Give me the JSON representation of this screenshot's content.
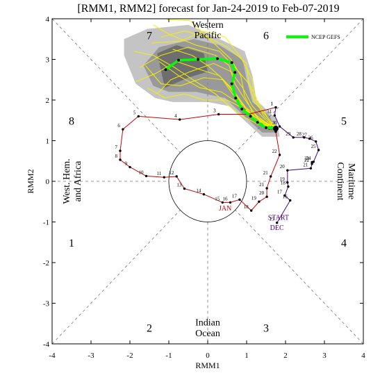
{
  "chart_data": {
    "type": "line",
    "title": "[RMM1, RMM2] forecast for Jan-24-2019 to Feb-07-2019",
    "xlabel": "RMM1",
    "ylabel": "RMM2",
    "xlim": [
      -4,
      4
    ],
    "ylim": [
      -4,
      4
    ],
    "x_ticks": [
      "-4",
      "-3",
      "-2",
      "-1",
      "0",
      "1",
      "2",
      "3",
      "4"
    ],
    "y_ticks": [
      "-4",
      "-3",
      "-2",
      "-1",
      "0",
      "1",
      "2",
      "3",
      "4"
    ],
    "phase_numbers": [
      {
        "label": "1",
        "x": -3.5,
        "y": -1.5
      },
      {
        "label": "2",
        "x": -1.5,
        "y": -3.6
      },
      {
        "label": "3",
        "x": 1.5,
        "y": -3.6
      },
      {
        "label": "4",
        "x": 3.5,
        "y": -1.5
      },
      {
        "label": "5",
        "x": 3.5,
        "y": 1.5
      },
      {
        "label": "6",
        "x": 1.5,
        "y": 3.6
      },
      {
        "label": "7",
        "x": -1.5,
        "y": 3.6
      },
      {
        "label": "8",
        "x": -3.5,
        "y": 1.5
      }
    ],
    "region_labels": {
      "western_pacific": [
        "Western",
        "Pacific"
      ],
      "indian_ocean": [
        "Indian",
        "Ocean"
      ],
      "maritime": [
        "Maritime",
        "Continent"
      ],
      "west_hem": [
        "West. Hem.",
        "and Africa"
      ]
    },
    "annotations": {
      "start": "START",
      "dec": "DEC",
      "jan": "JAN"
    },
    "legend": {
      "label": "NCEP GEFS",
      "color": "#00ff00",
      "position": "top-right"
    },
    "series": [
      {
        "color": "#4b0082",
        "points": [
          {
            "x": 1.78,
            "y": -1.02,
            "label": "15"
          },
          {
            "x": 2.12,
            "y": -0.47,
            "label": "16"
          },
          {
            "x": 1.98,
            "y": -0.35,
            "label": "17"
          },
          {
            "x": 2.07,
            "y": -0.13,
            "label": "18"
          },
          {
            "x": 2.05,
            "y": -0.03,
            "label": "19"
          },
          {
            "x": 2.05,
            "y": 0.27,
            "label": "20"
          },
          {
            "x": 2.65,
            "y": 0.32,
            "label": "21"
          },
          {
            "x": 2.68,
            "y": 0.43,
            "label": "22"
          },
          {
            "x": 2.68,
            "y": 0.47,
            "label": "23"
          },
          {
            "x": 2.72,
            "y": 0.48,
            "label": "24"
          },
          {
            "x": 2.85,
            "y": 0.77,
            "label": "25"
          },
          {
            "x": 2.78,
            "y": 0.98,
            "label": "26"
          },
          {
            "x": 2.62,
            "y": 1.05,
            "label": "27"
          },
          {
            "x": 2.48,
            "y": 1.08,
            "label": "28"
          },
          {
            "x": 2.2,
            "y": 1.08,
            "label": "29"
          },
          {
            "x": 1.85,
            "y": 1.35,
            "label": "30"
          },
          {
            "x": 1.72,
            "y": 1.62,
            "label": "31"
          },
          {
            "x": 1.75,
            "y": 1.82,
            "label": "1"
          }
        ]
      },
      {
        "color": "#cc0000",
        "points": [
          {
            "x": 1.75,
            "y": 1.82,
            "label": "1"
          },
          {
            "x": 1.05,
            "y": 1.65,
            "label": "2"
          },
          {
            "x": 0.28,
            "y": 1.65,
            "label": "3"
          },
          {
            "x": -0.72,
            "y": 1.52,
            "label": "4"
          },
          {
            "x": -1.78,
            "y": 1.6,
            "label": "5"
          },
          {
            "x": -2.18,
            "y": 1.28,
            "label": "6"
          },
          {
            "x": -2.25,
            "y": 0.75,
            "label": "7"
          },
          {
            "x": -2.25,
            "y": 0.53,
            "label": "8"
          },
          {
            "x": -2.0,
            "y": 0.35,
            "label": "9"
          },
          {
            "x": -1.58,
            "y": 0.13,
            "label": "10"
          },
          {
            "x": -1.12,
            "y": 0.1,
            "label": "11"
          },
          {
            "x": -0.8,
            "y": 0.12,
            "label": "12"
          },
          {
            "x": -0.6,
            "y": -0.18,
            "label": "13"
          },
          {
            "x": -0.1,
            "y": -0.32,
            "label": "14"
          },
          {
            "x": 0.38,
            "y": -0.52,
            "label": "15"
          },
          {
            "x": 0.58,
            "y": -0.52,
            "label": "16"
          },
          {
            "x": 0.82,
            "y": -0.45,
            "label": "17"
          },
          {
            "x": 1.12,
            "y": -0.72,
            "label": "18"
          },
          {
            "x": 1.32,
            "y": -0.5,
            "label": "19"
          },
          {
            "x": 1.52,
            "y": -0.38,
            "label": "20"
          },
          {
            "x": 1.52,
            "y": -0.17,
            "label": "21"
          },
          {
            "x": 1.62,
            "y": 0.12,
            "label": "21"
          },
          {
            "x": 1.85,
            "y": 0.65,
            "label": "22"
          },
          {
            "x": 1.75,
            "y": 1.22,
            "label": "23"
          }
        ]
      },
      {
        "name": "NCEP GEFS",
        "color": "#00ff00",
        "points": [
          {
            "x": 1.75,
            "y": 1.32
          },
          {
            "x": 1.5,
            "y": 1.32
          },
          {
            "x": 1.28,
            "y": 1.45
          },
          {
            "x": 1.1,
            "y": 1.6
          },
          {
            "x": 0.88,
            "y": 1.78
          },
          {
            "x": 0.72,
            "y": 2.05
          },
          {
            "x": 0.62,
            "y": 2.4
          },
          {
            "x": 0.7,
            "y": 2.68
          },
          {
            "x": 0.62,
            "y": 2.92
          },
          {
            "x": 0.25,
            "y": 3.02
          },
          {
            "x": -0.25,
            "y": 3.0
          },
          {
            "x": -0.75,
            "y": 2.98
          },
          {
            "x": -1.08,
            "y": 2.75
          }
        ]
      }
    ],
    "ensemble_members": [
      [
        [
          1.75,
          1.32
        ],
        [
          1.45,
          1.4
        ],
        [
          1.15,
          1.7
        ],
        [
          0.95,
          2.1
        ],
        [
          0.85,
          2.6
        ],
        [
          0.6,
          3.0
        ],
        [
          0.1,
          3.45
        ],
        [
          -0.45,
          3.95
        ],
        [
          -1.05,
          3.98
        ]
      ],
      [
        [
          1.75,
          1.32
        ],
        [
          1.6,
          1.5
        ],
        [
          1.2,
          1.95
        ],
        [
          1.05,
          2.45
        ],
        [
          1.0,
          2.9
        ],
        [
          0.5,
          3.3
        ],
        [
          0.0,
          3.55
        ],
        [
          -0.6,
          3.7
        ],
        [
          -1.2,
          3.55
        ]
      ],
      [
        [
          1.75,
          1.32
        ],
        [
          1.3,
          1.55
        ],
        [
          1.0,
          1.95
        ],
        [
          0.7,
          2.4
        ],
        [
          0.55,
          2.85
        ],
        [
          0.2,
          3.1
        ],
        [
          -0.5,
          3.3
        ],
        [
          -1.2,
          3.1
        ],
        [
          -1.75,
          2.8
        ]
      ],
      [
        [
          1.75,
          1.32
        ],
        [
          1.4,
          1.45
        ],
        [
          1.0,
          1.75
        ],
        [
          0.7,
          2.15
        ],
        [
          0.4,
          2.5
        ],
        [
          -0.1,
          2.55
        ],
        [
          -0.7,
          2.35
        ],
        [
          -1.2,
          2.4
        ],
        [
          -1.6,
          2.85
        ]
      ],
      [
        [
          1.75,
          1.32
        ],
        [
          1.35,
          1.5
        ],
        [
          0.9,
          1.8
        ],
        [
          0.5,
          2.0
        ],
        [
          -0.1,
          2.0
        ],
        [
          -0.6,
          2.15
        ],
        [
          -1.1,
          2.05
        ],
        [
          -1.55,
          2.3
        ]
      ],
      [
        [
          1.75,
          1.32
        ],
        [
          1.5,
          1.5
        ],
        [
          1.15,
          1.85
        ],
        [
          0.9,
          2.3
        ],
        [
          0.6,
          2.7
        ],
        [
          0.15,
          2.9
        ],
        [
          -0.45,
          2.7
        ],
        [
          -0.95,
          2.5
        ],
        [
          -1.3,
          2.15
        ]
      ],
      [
        [
          1.75,
          1.32
        ],
        [
          1.45,
          1.6
        ],
        [
          1.2,
          2.05
        ],
        [
          1.15,
          2.5
        ],
        [
          0.85,
          3.05
        ],
        [
          0.45,
          3.55
        ],
        [
          -0.1,
          3.7
        ],
        [
          -0.7,
          3.45
        ],
        [
          -1.45,
          3.4
        ]
      ],
      [
        [
          1.75,
          1.32
        ],
        [
          1.25,
          1.5
        ],
        [
          0.95,
          1.85
        ],
        [
          0.65,
          2.25
        ],
        [
          0.3,
          2.6
        ],
        [
          -0.2,
          2.75
        ],
        [
          -0.8,
          2.95
        ],
        [
          -1.35,
          2.65
        ],
        [
          -1.85,
          2.45
        ]
      ],
      [
        [
          1.75,
          1.32
        ],
        [
          1.4,
          1.4
        ],
        [
          1.05,
          1.65
        ],
        [
          0.75,
          1.95
        ],
        [
          0.35,
          2.2
        ],
        [
          -0.2,
          2.3
        ],
        [
          -0.75,
          2.6
        ],
        [
          -1.25,
          2.95
        ]
      ],
      [
        [
          1.75,
          1.32
        ],
        [
          1.55,
          1.55
        ],
        [
          1.3,
          1.95
        ],
        [
          1.1,
          2.35
        ],
        [
          0.75,
          2.75
        ],
        [
          0.3,
          3.2
        ],
        [
          -0.3,
          3.35
        ],
        [
          -0.95,
          3.6
        ],
        [
          -1.4,
          3.85
        ]
      ],
      [
        [
          1.75,
          1.32
        ],
        [
          1.3,
          1.4
        ],
        [
          0.9,
          1.6
        ],
        [
          0.55,
          1.85
        ],
        [
          0.2,
          2.15
        ],
        [
          -0.3,
          2.45
        ],
        [
          -0.85,
          2.8
        ],
        [
          -1.4,
          3.1
        ],
        [
          -1.9,
          3.2
        ]
      ],
      [
        [
          1.75,
          1.32
        ],
        [
          1.5,
          1.45
        ],
        [
          1.15,
          1.7
        ],
        [
          0.85,
          1.9
        ],
        [
          0.6,
          2.2
        ],
        [
          0.35,
          2.55
        ],
        [
          0.0,
          2.85
        ],
        [
          -0.4,
          3.1
        ],
        [
          -0.9,
          3.25
        ]
      ]
    ],
    "ensemble_spread": {
      "outer": [
        [
          1.85,
          1.1
        ],
        [
          1.75,
          1.55
        ],
        [
          1.25,
          2.0
        ],
        [
          1.15,
          2.6
        ],
        [
          0.95,
          3.2
        ],
        [
          0.2,
          3.55
        ],
        [
          -0.5,
          3.85
        ],
        [
          -1.55,
          3.75
        ],
        [
          -2.15,
          3.5
        ],
        [
          -2.15,
          3.1
        ],
        [
          -1.85,
          2.4
        ],
        [
          -1.35,
          2.05
        ],
        [
          -0.9,
          1.95
        ],
        [
          0.0,
          1.95
        ],
        [
          0.55,
          1.85
        ],
        [
          1.0,
          1.45
        ],
        [
          1.4,
          1.1
        ]
      ],
      "middle": [
        [
          1.75,
          1.2
        ],
        [
          1.6,
          1.6
        ],
        [
          1.15,
          1.95
        ],
        [
          1.0,
          2.5
        ],
        [
          0.9,
          3.0
        ],
        [
          0.3,
          3.35
        ],
        [
          -0.35,
          3.5
        ],
        [
          -1.25,
          3.3
        ],
        [
          -1.65,
          2.85
        ],
        [
          -1.4,
          2.35
        ],
        [
          -1.0,
          2.2
        ],
        [
          -0.3,
          2.2
        ],
        [
          0.45,
          2.05
        ],
        [
          0.95,
          1.6
        ],
        [
          1.4,
          1.2
        ]
      ],
      "inner": [
        [
          -1.1,
          2.3
        ],
        [
          -0.5,
          2.55
        ],
        [
          0.0,
          2.7
        ],
        [
          -0.1,
          3.15
        ],
        [
          -0.8,
          3.35
        ],
        [
          -1.3,
          3.15
        ]
      ]
    },
    "markers": {
      "forecast_start": {
        "x": 1.75,
        "y": 1.3,
        "label": "23"
      }
    }
  }
}
